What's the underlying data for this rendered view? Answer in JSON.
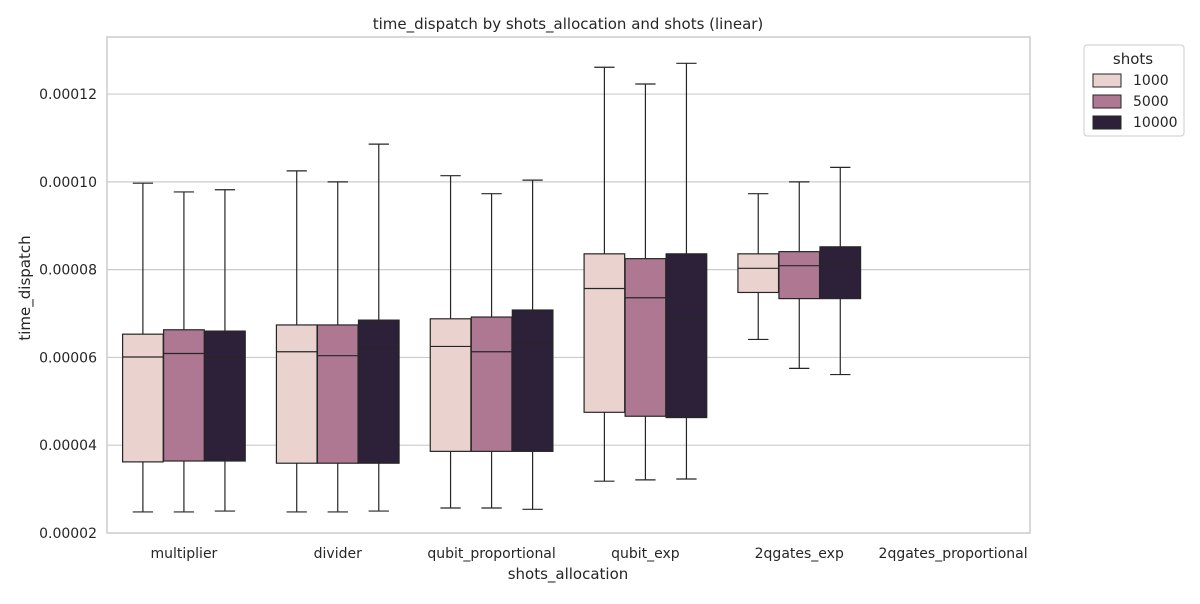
{
  "chart_data": {
    "type": "box",
    "title": "time_dispatch by shots_allocation and shots (linear)",
    "xlabel": "shots_allocation",
    "ylabel": "time_dispatch",
    "ylim": [
      2e-05,
      0.000133
    ],
    "yticks": [
      2e-05,
      4e-05,
      6e-05,
      8e-05,
      0.0001,
      0.00012
    ],
    "ytick_labels": [
      "0.00002",
      "0.00004",
      "0.00006",
      "0.00008",
      "0.00010",
      "0.00012"
    ],
    "grid": true,
    "legend_position": "outside-top-right",
    "legend_title": "shots",
    "categories": [
      "multiplier",
      "divider",
      "qubit_proportional",
      "qubit_exp",
      "2qgates_exp",
      "2qgates_proportional"
    ],
    "series": [
      {
        "name": "1000",
        "color": "#ead3cf",
        "boxes": [
          {
            "whislo": 2.48e-05,
            "q1": 3.62e-05,
            "med": 6.01e-05,
            "q3": 6.53e-05,
            "whishi": 9.97e-05
          },
          {
            "whislo": 2.48e-05,
            "q1": 3.59e-05,
            "med": 6.13e-05,
            "q3": 6.74e-05,
            "whishi": 0.0001025
          },
          {
            "whislo": 2.57e-05,
            "q1": 3.86e-05,
            "med": 6.25e-05,
            "q3": 6.88e-05,
            "whishi": 0.0001014
          },
          {
            "whislo": 3.18e-05,
            "q1": 4.75e-05,
            "med": 7.57e-05,
            "q3": 8.36e-05,
            "whishi": 0.0001261
          },
          {
            "whislo": 6.41e-05,
            "q1": 7.48e-05,
            "med": 8.03e-05,
            "q3": 8.36e-05,
            "whishi": 9.73e-05
          },
          null
        ]
      },
      {
        "name": "5000",
        "color": "#ae7893",
        "boxes": [
          {
            "whislo": 2.48e-05,
            "q1": 3.64e-05,
            "med": 6.09e-05,
            "q3": 6.63e-05,
            "whishi": 9.77e-05
          },
          {
            "whislo": 2.48e-05,
            "q1": 3.59e-05,
            "med": 6.04e-05,
            "q3": 6.74e-05,
            "whishi": 0.0001
          },
          {
            "whislo": 2.57e-05,
            "q1": 3.86e-05,
            "med": 6.13e-05,
            "q3": 6.92e-05,
            "whishi": 9.73e-05
          },
          {
            "whislo": 3.21e-05,
            "q1": 4.66e-05,
            "med": 7.36e-05,
            "q3": 8.25e-05,
            "whishi": 0.0001223
          },
          {
            "whislo": 5.75e-05,
            "q1": 7.34e-05,
            "med": 8.09e-05,
            "q3": 8.41e-05,
            "whishi": 0.0001
          },
          null
        ]
      },
      {
        "name": "10000",
        "color": "#2d2039",
        "boxes": [
          {
            "whislo": 2.5e-05,
            "q1": 3.64e-05,
            "med": 6.01e-05,
            "q3": 6.6e-05,
            "whishi": 9.82e-05
          },
          {
            "whislo": 2.5e-05,
            "q1": 3.59e-05,
            "med": 6.21e-05,
            "q3": 6.85e-05,
            "whishi": 0.0001086
          },
          {
            "whislo": 2.54e-05,
            "q1": 3.86e-05,
            "med": 6.34e-05,
            "q3": 7.08e-05,
            "whishi": 0.0001004
          },
          {
            "whislo": 3.23e-05,
            "q1": 4.63e-05,
            "med": 6.93e-05,
            "q3": 8.36e-05,
            "whishi": 0.000127
          },
          {
            "whislo": 5.61e-05,
            "q1": 7.34e-05,
            "med": 8.16e-05,
            "q3": 8.52e-05,
            "whishi": 0.0001033
          },
          null
        ]
      }
    ]
  }
}
